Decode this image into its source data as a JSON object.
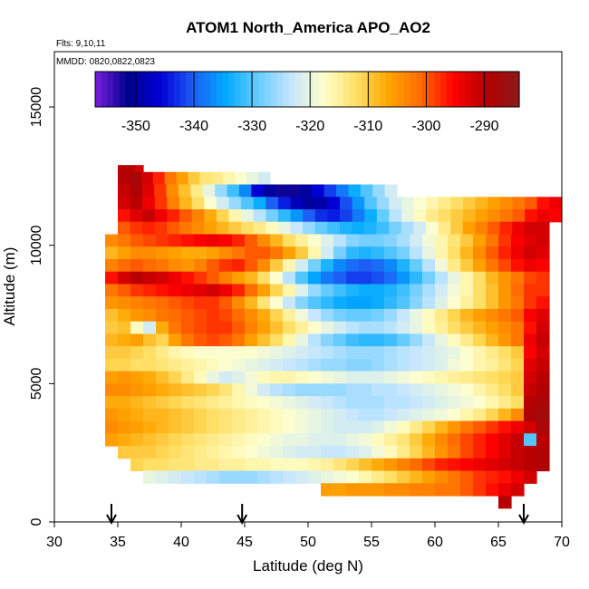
{
  "chart_data": {
    "type": "heatmap",
    "title": "ATOM1 North_America APO_AO2",
    "flights_label": "Flts: 9,10,11",
    "dates_label": "MMDD: 0820,0822,0823",
    "xlabel": "Latitude (deg N)",
    "ylabel": "Altitude (m)",
    "xlim": [
      30,
      70
    ],
    "ylim": [
      0,
      17000
    ],
    "xticks": [
      "30",
      "35",
      "40",
      "45",
      "50",
      "55",
      "60",
      "65",
      "70"
    ],
    "yticks": [
      "0",
      "5000",
      "10000",
      "15000"
    ],
    "colorbar": {
      "range": [
        -357,
        -284
      ],
      "ticks": [
        "-350",
        "-340",
        "-330",
        "-320",
        "-310",
        "-300",
        "-290"
      ],
      "colors": [
        "#7a1fe0",
        "#00008c",
        "#0000d6",
        "#1e5cf5",
        "#00aaff",
        "#66ccff",
        "#c6e6ff",
        "#ffffcc",
        "#ffe066",
        "#ffa500",
        "#ff6a00",
        "#ff0000",
        "#b30000",
        "#8b1a1a"
      ]
    },
    "arrow_latitudes": [
      34.5,
      44.8,
      67.0
    ],
    "grid": false,
    "rows": [
      {
        "alt": [
          12650,
          12900
        ],
        "lat": [
          35,
          37
        ],
        "values": [
          -290,
          -290,
          -292
        ]
      },
      {
        "alt": [
          12200,
          12650
        ],
        "lat": [
          35,
          47
        ],
        "values": [
          -290,
          -288,
          -292,
          -297,
          -302,
          -306,
          -310,
          -313,
          -314,
          -316,
          -318,
          -320,
          -322
        ]
      },
      {
        "alt": [
          11750,
          12200
        ],
        "lat": [
          35,
          57
        ],
        "values": [
          -291,
          -289,
          -293,
          -298,
          -304,
          -309,
          -314,
          -320,
          -326,
          -331,
          -337,
          -346,
          -350,
          -352,
          -352,
          -350,
          -346,
          -342,
          -338,
          -334,
          -330,
          -326,
          -322
        ]
      },
      {
        "alt": [
          11300,
          11750
        ],
        "lat": [
          35,
          70
        ],
        "values": [
          -292,
          -290,
          -294,
          -298,
          -303,
          -308,
          -312,
          -318,
          -322,
          -326,
          -330,
          -334,
          -340,
          -344,
          -348,
          -350,
          -349,
          -346,
          -341,
          -336,
          -330,
          -326,
          -322,
          -320,
          -318,
          -316,
          -314,
          -312,
          -310,
          -308,
          -306,
          -304,
          -302,
          -300,
          -296,
          -294
        ]
      },
      {
        "alt": [
          10850,
          11300
        ],
        "lat": [
          35,
          70
        ],
        "values": [
          -296,
          -293,
          -291,
          -294,
          -297,
          -300,
          -303,
          -307,
          -311,
          -316,
          -320,
          -324,
          -328,
          -332,
          -336,
          -340,
          -343,
          -344,
          -342,
          -338,
          -334,
          -329,
          -324,
          -320,
          -317,
          -314,
          -312,
          -310,
          -308,
          -306,
          -304,
          -302,
          -300,
          -296,
          -294,
          -295
        ]
      },
      {
        "alt": [
          10400,
          10850
        ],
        "lat": [
          35,
          69
        ],
        "values": [
          -300,
          -298,
          -297,
          -298,
          -300,
          -302,
          -304,
          -306,
          -308,
          -310,
          -312,
          -314,
          -317,
          -320,
          -323,
          -326,
          -329,
          -331,
          -333,
          -334,
          -333,
          -331,
          -328,
          -325,
          -322,
          -318,
          -314,
          -310,
          -306,
          -303,
          -300,
          -297,
          -294,
          -292,
          -292
        ]
      },
      {
        "alt": [
          9950,
          10400
        ],
        "lat": [
          34,
          69
        ],
        "values": [
          -304,
          -302,
          -300,
          -299,
          -298,
          -297,
          -296,
          -295,
          -294,
          -295,
          -297,
          -300,
          -304,
          -308,
          -312,
          -315,
          -318,
          -321,
          -324,
          -327,
          -328,
          -328,
          -327,
          -325,
          -322,
          -319,
          -316,
          -313,
          -310,
          -306,
          -302,
          -298,
          -295,
          -293,
          -292
        ]
      },
      {
        "alt": [
          9500,
          9950
        ],
        "lat": [
          34,
          69
        ],
        "values": [
          -308,
          -306,
          -304,
          -304,
          -305,
          -306,
          -307,
          -307,
          -306,
          -304,
          -302,
          -300,
          -300,
          -302,
          -306,
          -310,
          -316,
          -322,
          -328,
          -332,
          -333,
          -332,
          -330,
          -328,
          -324,
          -320,
          -316,
          -312,
          -308,
          -304,
          -300,
          -297,
          -294,
          -292,
          -293
        ]
      },
      {
        "alt": [
          9050,
          9500
        ],
        "lat": [
          34,
          69
        ],
        "values": [
          -303,
          -301,
          -300,
          -301,
          -302,
          -304,
          -305,
          -303,
          -300,
          -298,
          -297,
          -300,
          -304,
          -310,
          -316,
          -322,
          -328,
          -333,
          -337,
          -339,
          -340,
          -339,
          -337,
          -333,
          -329,
          -324,
          -319,
          -314,
          -310,
          -306,
          -302,
          -299,
          -296,
          -294,
          -295
        ]
      },
      {
        "alt": [
          8600,
          9050
        ],
        "lat": [
          34,
          69
        ],
        "values": [
          -296,
          -292,
          -290,
          -291,
          -292,
          -294,
          -296,
          -298,
          -300,
          -303,
          -306,
          -308,
          -312,
          -318,
          -324,
          -330,
          -335,
          -338,
          -340,
          -342,
          -342,
          -341,
          -339,
          -336,
          -332,
          -328,
          -324,
          -320,
          -316,
          -312,
          -308,
          -305,
          -302,
          -299,
          -298
        ]
      },
      {
        "alt": [
          8150,
          8600
        ],
        "lat": [
          34,
          69
        ],
        "values": [
          -302,
          -300,
          -298,
          -297,
          -296,
          -295,
          -294,
          -293,
          -292,
          -294,
          -297,
          -301,
          -306,
          -311,
          -316,
          -321,
          -326,
          -329,
          -331,
          -333,
          -334,
          -334,
          -333,
          -331,
          -328,
          -325,
          -322,
          -319,
          -316,
          -312,
          -309,
          -305,
          -301,
          -298,
          -298
        ]
      },
      {
        "alt": [
          7700,
          8150
        ],
        "lat": [
          34,
          69
        ],
        "values": [
          -305,
          -304,
          -303,
          -302,
          -301,
          -300,
          -299,
          -298,
          -298,
          -300,
          -304,
          -308,
          -313,
          -318,
          -323,
          -327,
          -330,
          -332,
          -334,
          -335,
          -335,
          -334,
          -332,
          -330,
          -327,
          -324,
          -321,
          -318,
          -315,
          -312,
          -309,
          -305,
          -302,
          -298,
          -296
        ]
      },
      {
        "alt": [
          7250,
          7700
        ],
        "lat": [
          34,
          69
        ],
        "values": [
          -309,
          -307,
          -305,
          -304,
          -302,
          -301,
          -300,
          -299,
          -298,
          -299,
          -301,
          -304,
          -307,
          -311,
          -315,
          -319,
          -323,
          -326,
          -328,
          -329,
          -329,
          -328,
          -326,
          -323,
          -320,
          -317,
          -314,
          -311,
          -308,
          -306,
          -304,
          -302,
          -300,
          -295,
          -293
        ]
      },
      {
        "alt": [
          6800,
          7250
        ],
        "lat": [
          34,
          69
        ],
        "values": [
          -310,
          -309,
          -317,
          -322,
          -307,
          -302,
          -300,
          -299,
          -298,
          -298,
          -300,
          -303,
          -306,
          -309,
          -312,
          -315,
          -318,
          -320,
          -322,
          -324,
          -325,
          -325,
          -324,
          -322,
          -320,
          -317,
          -315,
          -312,
          -310,
          -308,
          -306,
          -304,
          -302,
          -296,
          -292
        ]
      },
      {
        "alt": [
          6350,
          6800
        ],
        "lat": [
          34,
          69
        ],
        "values": [
          -308,
          -307,
          -306,
          -309,
          -311,
          -306,
          -302,
          -300,
          -299,
          -300,
          -302,
          -306,
          -309,
          -312,
          -316,
          -320,
          -324,
          -327,
          -329,
          -331,
          -332,
          -332,
          -331,
          -329,
          -326,
          -323,
          -320,
          -317,
          -314,
          -311,
          -308,
          -305,
          -302,
          -294,
          -291
        ]
      },
      {
        "alt": [
          5900,
          6350
        ],
        "lat": [
          34,
          69
        ],
        "values": [
          -310,
          -310,
          -311,
          -312,
          -314,
          -316,
          -317,
          -318,
          -318,
          -318,
          -318,
          -318,
          -319,
          -320,
          -321,
          -322,
          -323,
          -324,
          -325,
          -326,
          -326,
          -326,
          -325,
          -324,
          -323,
          -322,
          -321,
          -320,
          -318,
          -316,
          -314,
          -312,
          -310,
          -295,
          -292
        ]
      },
      {
        "alt": [
          5450,
          5900
        ],
        "lat": [
          34,
          69
        ],
        "values": [
          -311,
          -311,
          -312,
          -312,
          -313,
          -314,
          -315,
          -316,
          -317,
          -318,
          -319,
          -320,
          -321,
          -322,
          -323,
          -324,
          -325,
          -326,
          -326,
          -327,
          -327,
          -326,
          -325,
          -324,
          -323,
          -322,
          -321,
          -319,
          -318,
          -316,
          -315,
          -313,
          -311,
          -293,
          -291
        ]
      },
      {
        "alt": [
          5000,
          5450
        ],
        "lat": [
          34,
          69
        ],
        "values": [
          -306,
          -305,
          -306,
          -307,
          -309,
          -311,
          -314,
          -317,
          -320,
          -322,
          -321,
          -319,
          -317,
          -316,
          -316,
          -317,
          -318,
          -319,
          -320,
          -321,
          -321,
          -321,
          -320,
          -319,
          -318,
          -317,
          -316,
          -315,
          -314,
          -313,
          -312,
          -311,
          -310,
          -292,
          -290
        ]
      },
      {
        "alt": [
          4550,
          5000
        ],
        "lat": [
          34,
          69
        ],
        "values": [
          -304,
          -304,
          -305,
          -306,
          -307,
          -308,
          -309,
          -310,
          -311,
          -313,
          -316,
          -319,
          -322,
          -324,
          -325,
          -326,
          -326,
          -326,
          -326,
          -325,
          -325,
          -324,
          -324,
          -323,
          -322,
          -321,
          -320,
          -319,
          -318,
          -316,
          -314,
          -312,
          -310,
          -291,
          -289
        ]
      },
      {
        "alt": [
          4100,
          4550
        ],
        "lat": [
          34,
          69
        ],
        "values": [
          -307,
          -307,
          -308,
          -309,
          -310,
          -311,
          -312,
          -313,
          -314,
          -315,
          -316,
          -317,
          -318,
          -319,
          -320,
          -321,
          -322,
          -323,
          -324,
          -325,
          -325,
          -325,
          -324,
          -324,
          -323,
          -322,
          -321,
          -320,
          -319,
          -318,
          -316,
          -314,
          -312,
          -290,
          -288
        ]
      },
      {
        "alt": [
          3650,
          4100
        ],
        "lat": [
          34,
          69
        ],
        "values": [
          -305,
          -306,
          -307,
          -308,
          -308,
          -309,
          -310,
          -311,
          -312,
          -313,
          -314,
          -315,
          -316,
          -317,
          -318,
          -319,
          -320,
          -321,
          -322,
          -323,
          -324,
          -324,
          -323,
          -322,
          -321,
          -320,
          -319,
          -318,
          -316,
          -314,
          -311,
          -308,
          -304,
          -289,
          -287
        ]
      },
      {
        "alt": [
          3200,
          3650
        ],
        "lat": [
          34,
          69
        ],
        "values": [
          -304,
          -305,
          -306,
          -307,
          -308,
          -309,
          -310,
          -311,
          -312,
          -313,
          -314,
          -315,
          -316,
          -317,
          -318,
          -319,
          -320,
          -321,
          -322,
          -322,
          -322,
          -321,
          -319,
          -317,
          -314,
          -311,
          -308,
          -305,
          -302,
          -300,
          -298,
          -296,
          -294,
          -292,
          -288
        ]
      },
      {
        "alt": [
          2750,
          3200
        ],
        "lat": [
          34,
          69
        ],
        "values": [
          -306,
          -307,
          -308,
          -309,
          -310,
          -311,
          -312,
          -313,
          -314,
          -315,
          -316,
          -317,
          -318,
          -319,
          -320,
          -320,
          -321,
          -321,
          -321,
          -320,
          -319,
          -317,
          -315,
          -313,
          -310,
          -307,
          -304,
          -301,
          -299,
          -297,
          -295,
          -293,
          -291,
          -330,
          -290
        ]
      },
      {
        "alt": [
          2300,
          2750
        ],
        "lat": [
          35,
          69
        ],
        "values": [
          -310,
          -310,
          -310,
          -311,
          -312,
          -313,
          -314,
          -315,
          -316,
          -317,
          -318,
          -319,
          -320,
          -321,
          -322,
          -322,
          -323,
          -323,
          -322,
          -321,
          -319,
          -317,
          -314,
          -311,
          -308,
          -305,
          -302,
          -299,
          -297,
          -295,
          -293,
          -291,
          -290,
          -289
        ]
      },
      {
        "alt": [
          1850,
          2300
        ],
        "lat": [
          36,
          69
        ],
        "values": [
          -311,
          -312,
          -312,
          -313,
          -313,
          -314,
          -314,
          -315,
          -315,
          -316,
          -316,
          -317,
          -317,
          -317,
          -316,
          -315,
          -313,
          -311,
          -309,
          -307,
          -305,
          -303,
          -301,
          -299,
          -297,
          -296,
          -295,
          -294,
          -293,
          -292,
          -291,
          -290,
          -289
        ]
      },
      {
        "alt": [
          1400,
          1850
        ],
        "lat": [
          37,
          68
        ],
        "values": [
          -320,
          -321,
          -322,
          -323,
          -324,
          -325,
          -326,
          -326,
          -326,
          -325,
          -324,
          -323,
          -322,
          -321,
          -320,
          -319,
          -318,
          -316,
          -314,
          -312,
          -310,
          -308,
          -306,
          -304,
          -302,
          -300,
          -298,
          -297,
          -296,
          -294,
          -292
        ]
      },
      {
        "alt": [
          950,
          1400
        ],
        "lat": [
          51,
          67
        ],
        "values": [
          -306,
          -306,
          -305,
          -305,
          -305,
          -304,
          -304,
          -303,
          -303,
          -302,
          -302,
          -300,
          -298,
          -296,
          -294,
          -292
        ]
      },
      {
        "alt": [
          500,
          950
        ],
        "lat": [
          65,
          66
        ],
        "values": [
          -290
        ]
      }
    ]
  }
}
